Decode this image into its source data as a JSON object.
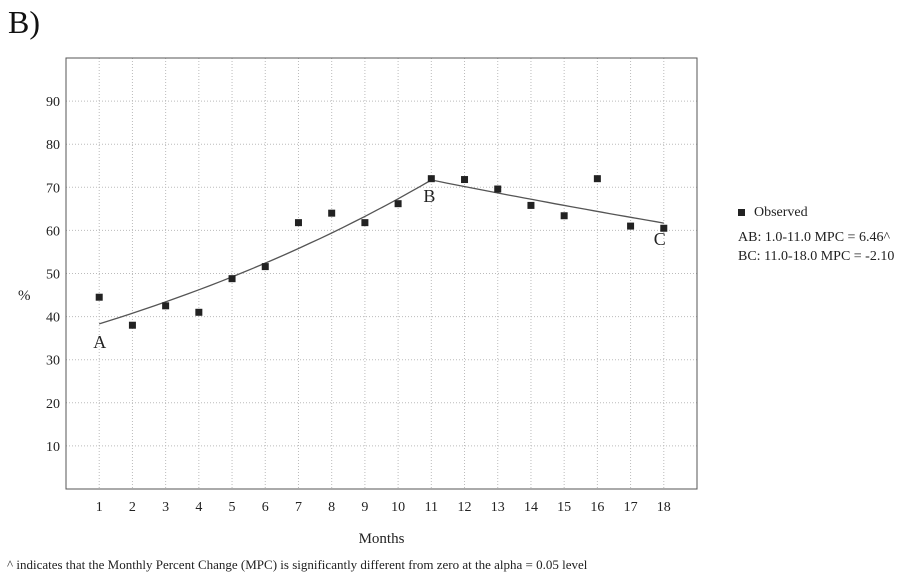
{
  "panel_label": "B)",
  "footnote": "^ indicates that the Monthly Percent Change (MPC) is significantly different from zero at the alpha = 0.05 level",
  "legend": {
    "observed_label": "Observed",
    "segments": [
      "AB: 1.0-11.0 MPC = 6.46^",
      "BC: 11.0-18.0 MPC = -2.10"
    ]
  },
  "chart_data": {
    "type": "scatter",
    "title": "",
    "xlabel": "Months",
    "ylabel": "%",
    "xlim": [
      0,
      19
    ],
    "ylim": [
      0,
      100
    ],
    "x_ticks": [
      1,
      2,
      3,
      4,
      5,
      6,
      7,
      8,
      9,
      10,
      11,
      12,
      13,
      14,
      15,
      16,
      17,
      18
    ],
    "y_ticks": [
      10,
      20,
      30,
      40,
      50,
      60,
      70,
      80,
      90
    ],
    "grid": true,
    "legend_position": "right",
    "series": [
      {
        "name": "Observed",
        "x": [
          1,
          2,
          3,
          4,
          5,
          6,
          7,
          8,
          9,
          10,
          11,
          12,
          13,
          14,
          15,
          16,
          17,
          18
        ],
        "y": [
          44.5,
          38,
          42.5,
          41,
          48.8,
          51.6,
          61.8,
          64,
          61.8,
          66.2,
          72,
          71.8,
          69.6,
          65.8,
          63.4,
          72,
          61,
          60.5
        ]
      }
    ],
    "fitted_segments": [
      {
        "label": "AB",
        "x_range": [
          1,
          11
        ],
        "mpc": 6.46,
        "start_y": 38.3,
        "end_y": 71.7
      },
      {
        "label": "BC",
        "x_range": [
          11,
          18
        ],
        "mpc": -2.1,
        "start_y": 71.7,
        "end_y": 61.7
      }
    ],
    "annotations": [
      {
        "text": "A",
        "x": 1,
        "y": 38.3
      },
      {
        "text": "B",
        "x": 11,
        "y": 71.7
      },
      {
        "text": "C",
        "x": 18,
        "y": 61.7
      }
    ],
    "colors": {
      "marker": "#222222",
      "line": "#555555",
      "grid": "#bbbbbb"
    }
  }
}
